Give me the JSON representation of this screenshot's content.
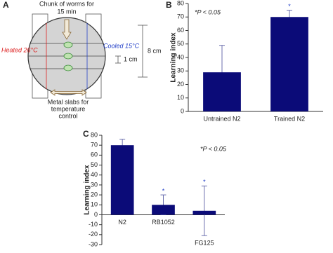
{
  "panel_labels": [
    "A",
    "B",
    "C"
  ],
  "panel_a": {
    "top_label": [
      "Chunk of worms for",
      "15 min"
    ],
    "heated": "Heated 26°C",
    "cooled": "Cooled 15°C",
    "scale_small": "1 cm",
    "scale_large": "8 cm",
    "bottom_label": [
      "Metal slabs for",
      "temperature",
      "control"
    ]
  },
  "chart_data": [
    {
      "type": "bar",
      "y_label": "Learning index",
      "categories": [
        "Untrained N2",
        "Trained N2"
      ],
      "values": [
        29,
        70
      ],
      "errors": [
        20,
        5
      ],
      "color": "#0b0b78",
      "error_color": "#6b6fae",
      "ylim": [
        0,
        80
      ],
      "yticks": [
        0,
        10,
        20,
        30,
        40,
        50,
        60,
        70,
        80
      ],
      "annotation": "*P < 0.05",
      "significant": [
        false,
        true
      ],
      "significance_label": "*"
    },
    {
      "type": "bar",
      "y_label": "Learning index",
      "categories": [
        "N2",
        "RB1052",
        "FG125"
      ],
      "values": [
        70,
        10,
        4
      ],
      "errors": [
        6,
        10,
        25
      ],
      "color": "#0b0b78",
      "error_color": "#6b6fae",
      "ylim": [
        -30,
        80
      ],
      "yticks": [
        -30,
        -20,
        -10,
        0,
        10,
        20,
        30,
        40,
        50,
        60,
        70,
        80
      ],
      "annotation": "*P < 0.05",
      "significant": [
        false,
        true,
        true
      ],
      "significance_label": "*"
    }
  ]
}
